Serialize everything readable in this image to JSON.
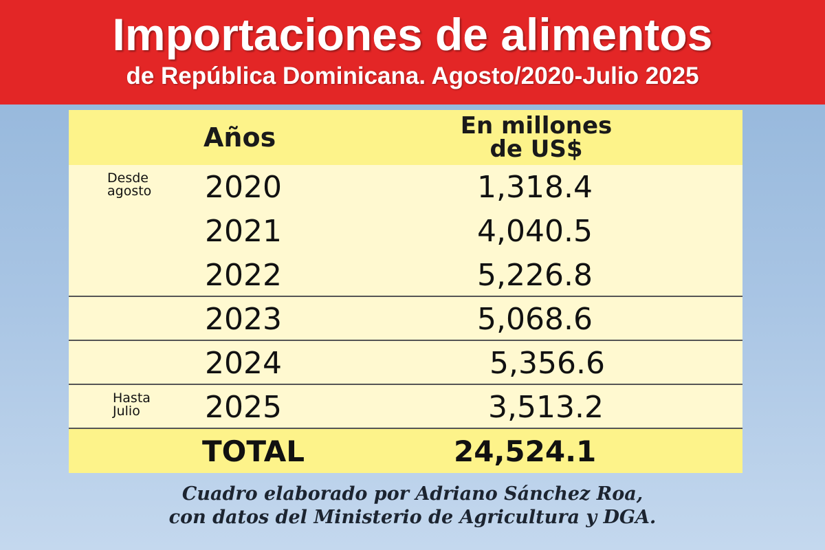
{
  "header": {
    "title": "Importaciones de alimentos",
    "subtitle": "de República Dominicana. Agosto/2020-Julio 2025"
  },
  "colors": {
    "header_bg": "#e32626",
    "table_header_bg": "#fdf38a",
    "table_body_bg": "#fff9d0",
    "page_bg": "#a9c5e4"
  },
  "chart_data": {
    "type": "table",
    "columns": [
      "Años",
      "En millones de US$"
    ],
    "column_lines": [
      "En millones",
      "de US$"
    ],
    "rows": [
      {
        "note": "Desde agosto",
        "note_lines": [
          "Desde",
          "agosto"
        ],
        "year": "2020",
        "value": "1,318.4"
      },
      {
        "note": "",
        "note_lines": [],
        "year": "2021",
        "value": "4,040.5"
      },
      {
        "note": "",
        "note_lines": [],
        "year": "2022",
        "value": "5,226.8"
      },
      {
        "note": "",
        "note_lines": [],
        "year": "2023",
        "value": "5,068.6"
      },
      {
        "note": "",
        "note_lines": [],
        "year": "2024",
        "value": "5,356.6"
      },
      {
        "note": "Hasta Julio",
        "note_lines": [
          "Hasta",
          "Julio"
        ],
        "year": "2025",
        "value": "3,513.2"
      }
    ],
    "total": {
      "label": "TOTAL",
      "value": "24,524.1"
    }
  },
  "footer": {
    "line1": "Cuadro elaborado por Adriano Sánchez Roa,",
    "line2": "con datos del Ministerio de Agricultura y DGA."
  }
}
